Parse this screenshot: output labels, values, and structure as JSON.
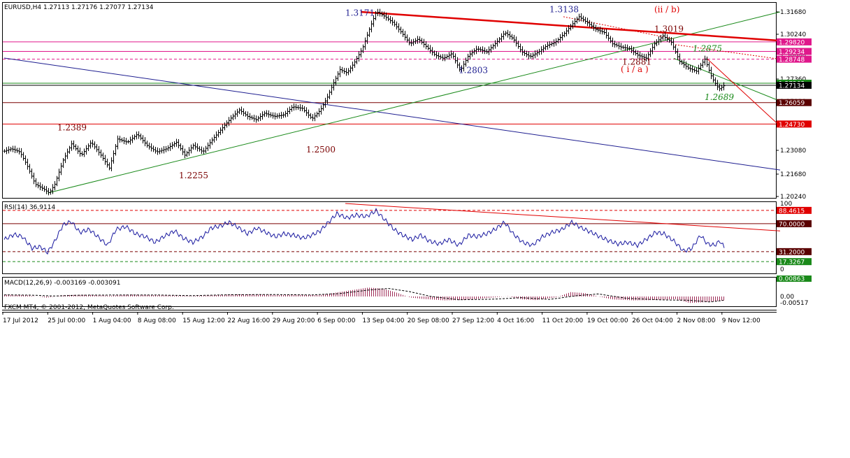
{
  "window": {
    "symbol_header": "EURUSD,H4  1.27113 1.27176 1.27077 1.27134",
    "copyright": "FXCM MT4, © 2001-2012, MetaQuotes Software Corp."
  },
  "colors": {
    "candle": "#000000",
    "red_trend": "#e00000",
    "green_trend": "#1a8a1a",
    "blue_trend": "#1e1e90",
    "magenta_level": "#e0188c",
    "dark_level": "#7a0000",
    "rsi_line": "#1a1aa0",
    "macd_hist": "#a0305a"
  },
  "chart_data": [
    {
      "type": "candlestick",
      "panel": "price",
      "ylim": [
        1.2024,
        1.3168
      ],
      "y_ticks": [
        "1.31680",
        "1.30240",
        "1.28800",
        "1.27360",
        "1.25920",
        "1.24480",
        "1.23080",
        "1.21680",
        "1.20240"
      ],
      "x_ticks": [
        "17 Jul 2012",
        "25 Jul 00:00",
        "1 Aug 04:00",
        "8 Aug 08:00",
        "15 Aug 12:00",
        "22 Aug 16:00",
        "29 Aug 20:00",
        "6 Sep 00:00",
        "13 Sep 04:00",
        "20 Sep 08:00",
        "27 Sep 12:00",
        "4 Oct 16:00",
        "11 Oct 20:00",
        "19 Oct 00:00",
        "26 Oct 04:00",
        "2 Nov 08:00",
        "9 Nov 12:00"
      ],
      "close_path": [
        [
          0,
          1.2305
        ],
        [
          10,
          1.232
        ],
        [
          22,
          1.23
        ],
        [
          32,
          1.222
        ],
        [
          44,
          1.21
        ],
        [
          56,
          1.207
        ],
        [
          64,
          1.2045
        ],
        [
          72,
          1.21
        ],
        [
          84,
          1.225
        ],
        [
          96,
          1.235
        ],
        [
          110,
          1.228
        ],
        [
          124,
          1.236
        ],
        [
          138,
          1.228
        ],
        [
          150,
          1.22
        ],
        [
          162,
          1.238
        ],
        [
          176,
          1.236
        ],
        [
          190,
          1.241
        ],
        [
          204,
          1.234
        ],
        [
          218,
          1.23
        ],
        [
          232,
          1.232
        ],
        [
          246,
          1.236
        ],
        [
          258,
          1.228
        ],
        [
          270,
          1.234
        ],
        [
          284,
          1.23
        ],
        [
          298,
          1.238
        ],
        [
          312,
          1.245
        ],
        [
          324,
          1.251
        ],
        [
          336,
          1.256
        ],
        [
          348,
          1.252
        ],
        [
          360,
          1.25
        ],
        [
          372,
          1.254
        ],
        [
          386,
          1.252
        ],
        [
          400,
          1.253
        ],
        [
          412,
          1.258
        ],
        [
          426,
          1.257
        ],
        [
          440,
          1.2505
        ],
        [
          452,
          1.256
        ],
        [
          462,
          1.264
        ],
        [
          470,
          1.272
        ],
        [
          480,
          1.281
        ],
        [
          490,
          1.279
        ],
        [
          500,
          1.285
        ],
        [
          512,
          1.294
        ],
        [
          522,
          1.306
        ],
        [
          532,
          1.3171
        ],
        [
          544,
          1.314
        ],
        [
          556,
          1.31
        ],
        [
          568,
          1.304
        ],
        [
          580,
          1.297
        ],
        [
          592,
          1.3
        ],
        [
          604,
          1.295
        ],
        [
          616,
          1.29
        ],
        [
          628,
          1.288
        ],
        [
          640,
          1.291
        ],
        [
          652,
          1.2803
        ],
        [
          664,
          1.29
        ],
        [
          676,
          1.294
        ],
        [
          690,
          1.292
        ],
        [
          704,
          1.298
        ],
        [
          716,
          1.304
        ],
        [
          728,
          1.3
        ],
        [
          740,
          1.292
        ],
        [
          752,
          1.289
        ],
        [
          764,
          1.292
        ],
        [
          776,
          1.296
        ],
        [
          788,
          1.298
        ],
        [
          800,
          1.303
        ],
        [
          812,
          1.309
        ],
        [
          822,
          1.3138
        ],
        [
          834,
          1.31
        ],
        [
          846,
          1.306
        ],
        [
          858,
          1.304
        ],
        [
          870,
          1.297
        ],
        [
          882,
          1.295
        ],
        [
          894,
          1.294
        ],
        [
          906,
          1.29
        ],
        [
          918,
          1.2881
        ],
        [
          930,
          1.297
        ],
        [
          942,
          1.3019
        ],
        [
          954,
          1.298
        ],
        [
          966,
          1.286
        ],
        [
          978,
          1.282
        ],
        [
          990,
          1.28
        ],
        [
          1002,
          1.2875
        ],
        [
          1012,
          1.276
        ],
        [
          1022,
          1.2689
        ],
        [
          1030,
          1.2713
        ]
      ],
      "horizontal_levels": [
        {
          "price": 1.2982,
          "label": "1.29820",
          "style": "solid",
          "color": "magenta"
        },
        {
          "price": 1.2923,
          "label": "1.29234",
          "style": "solid",
          "color": "magenta"
        },
        {
          "price": 1.2875,
          "label": "1.28748",
          "style": "dashed",
          "color": "magenta"
        },
        {
          "price": 1.2726,
          "label": "1.27263",
          "style": "solid",
          "color": "green"
        },
        {
          "price": 1.2713,
          "label": "1.27134",
          "style": "solid",
          "color": "black"
        },
        {
          "price": 1.2606,
          "label": "1.26059",
          "style": "solid",
          "color": "dark"
        },
        {
          "price": 1.2473,
          "label": "1.24730",
          "style": "solid",
          "color": "red"
        }
      ],
      "trendlines": [
        {
          "from": [
            0,
            1.2882
          ],
          "to": [
            1110,
            1.2188
          ],
          "color": "blue"
        },
        {
          "from": [
            62,
            1.2045
          ],
          "to": [
            1110,
            1.3168
          ],
          "color": "green"
        },
        {
          "from": [
            510,
            1.3168
          ],
          "to": [
            1110,
            1.299
          ],
          "color": "red",
          "width": "thick"
        },
        {
          "from": [
            958,
            1.288
          ],
          "to": [
            1110,
            1.2615
          ],
          "color": "green"
        },
        {
          "from": [
            960,
            1.2965
          ],
          "to": [
            1110,
            1.2875
          ],
          "color": "red",
          "style": "dotted"
        },
        {
          "from": [
            800,
            1.3138
          ],
          "to": [
            958,
            1.3
          ],
          "color": "red",
          "style": "dotted"
        },
        {
          "from": [
            1005,
            1.288
          ],
          "to": [
            1110,
            1.246
          ],
          "color": "red"
        }
      ],
      "annotations": [
        {
          "text": "1.3171",
          "at": [
            488,
            1.3145
          ],
          "color": "blue"
        },
        {
          "text": "1.3138",
          "at": [
            780,
            1.3165
          ],
          "color": "blue"
        },
        {
          "text": "1.2803",
          "at": [
            650,
            1.2788
          ],
          "color": "blue"
        },
        {
          "text": "(ii / b)",
          "at": [
            930,
            1.3165
          ],
          "color": "red"
        },
        {
          "text": "1.3019",
          "at": [
            930,
            1.3045
          ],
          "color": "dark"
        },
        {
          "text": "1.2875",
          "at": [
            985,
            1.2923
          ],
          "color": "green_italic"
        },
        {
          "text": "1.2881",
          "at": [
            884,
            1.284
          ],
          "color": "dark"
        },
        {
          "text": "( i / a )",
          "at": [
            882,
            1.2796
          ],
          "color": "red"
        },
        {
          "text": "1.2689",
          "at": [
            1002,
            1.2622
          ],
          "color": "green_italic"
        },
        {
          "text": "1.2389",
          "at": [
            76,
            1.2433
          ],
          "color": "dark"
        },
        {
          "text": "1.2500",
          "at": [
            432,
            1.2298
          ],
          "color": "dark"
        },
        {
          "text": "1.2255",
          "at": [
            250,
            1.2136
          ],
          "color": "dark"
        }
      ]
    },
    {
      "type": "line",
      "panel": "indicator",
      "title": "RSI(14) 36.9114",
      "ylim": [
        0,
        100
      ],
      "y_ticks": [
        "100",
        "0"
      ],
      "levels": [
        {
          "value": 88.4615,
          "label": "88.4615",
          "style": "dashed",
          "color": "red"
        },
        {
          "value": 70,
          "label": "70.0000",
          "style": "solid",
          "color": "dark"
        },
        {
          "value": 31.2,
          "label": "31.2000",
          "style": "dashed",
          "color": "dark"
        },
        {
          "value": 17.3267,
          "label": "17.3267",
          "style": "dashed",
          "color": "green"
        }
      ],
      "values_path": [
        [
          0,
          48
        ],
        [
          14,
          55
        ],
        [
          26,
          52
        ],
        [
          40,
          36
        ],
        [
          52,
          38
        ],
        [
          62,
          30
        ],
        [
          72,
          45
        ],
        [
          84,
          68
        ],
        [
          96,
          73
        ],
        [
          108,
          58
        ],
        [
          122,
          62
        ],
        [
          136,
          50
        ],
        [
          148,
          40
        ],
        [
          160,
          62
        ],
        [
          174,
          66
        ],
        [
          188,
          56
        ],
        [
          202,
          52
        ],
        [
          216,
          44
        ],
        [
          228,
          52
        ],
        [
          244,
          60
        ],
        [
          256,
          50
        ],
        [
          270,
          44
        ],
        [
          284,
          52
        ],
        [
          296,
          64
        ],
        [
          310,
          67
        ],
        [
          322,
          72
        ],
        [
          336,
          64
        ],
        [
          348,
          56
        ],
        [
          362,
          64
        ],
        [
          374,
          58
        ],
        [
          388,
          52
        ],
        [
          400,
          56
        ],
        [
          414,
          54
        ],
        [
          428,
          50
        ],
        [
          440,
          54
        ],
        [
          452,
          60
        ],
        [
          464,
          72
        ],
        [
          476,
          84
        ],
        [
          490,
          78
        ],
        [
          504,
          82
        ],
        [
          518,
          80
        ],
        [
          532,
          88
        ],
        [
          544,
          76
        ],
        [
          558,
          62
        ],
        [
          570,
          54
        ],
        [
          584,
          48
        ],
        [
          596,
          54
        ],
        [
          608,
          46
        ],
        [
          622,
          42
        ],
        [
          636,
          48
        ],
        [
          650,
          40
        ],
        [
          664,
          54
        ],
        [
          676,
          52
        ],
        [
          690,
          56
        ],
        [
          702,
          62
        ],
        [
          716,
          72
        ],
        [
          728,
          56
        ],
        [
          742,
          44
        ],
        [
          756,
          40
        ],
        [
          770,
          52
        ],
        [
          784,
          58
        ],
        [
          798,
          62
        ],
        [
          812,
          72
        ],
        [
          826,
          64
        ],
        [
          840,
          58
        ],
        [
          852,
          52
        ],
        [
          866,
          46
        ],
        [
          878,
          42
        ],
        [
          892,
          44
        ],
        [
          906,
          40
        ],
        [
          918,
          48
        ],
        [
          932,
          58
        ],
        [
          944,
          56
        ],
        [
          958,
          46
        ],
        [
          972,
          32
        ],
        [
          984,
          36
        ],
        [
          996,
          54
        ],
        [
          1006,
          42
        ],
        [
          1016,
          40
        ],
        [
          1024,
          46
        ],
        [
          1030,
          37
        ]
      ],
      "trendline": {
        "from": [
          488,
          98
        ],
        "to": [
          1110,
          60
        ],
        "color": "red"
      }
    },
    {
      "type": "bar",
      "panel": "indicator",
      "title": "MACD(12,26,9) -0.003169 -0.003091",
      "y_ticks": [
        "0.00"
      ],
      "levels": [
        {
          "value": 0.00863,
          "label": "0.00863",
          "color": "green"
        },
        {
          "value": -0.00517,
          "label": "-0.00517",
          "color": "none"
        }
      ],
      "histogram_path": [
        [
          0,
          0.0015
        ],
        [
          30,
          0.0011
        ],
        [
          60,
          -0.0009
        ],
        [
          90,
          0.0012
        ],
        [
          120,
          0.0014
        ],
        [
          150,
          0.0006
        ],
        [
          180,
          0.0016
        ],
        [
          210,
          0.0011
        ],
        [
          240,
          0.0008
        ],
        [
          270,
          0.0004
        ],
        [
          300,
          0.0011
        ],
        [
          330,
          0.0018
        ],
        [
          360,
          0.0017
        ],
        [
          390,
          0.0012
        ],
        [
          420,
          0.0014
        ],
        [
          450,
          0.0011
        ],
        [
          470,
          0.0028
        ],
        [
          500,
          0.0055
        ],
        [
          520,
          0.0073
        ],
        [
          540,
          0.0066
        ],
        [
          560,
          0.0034
        ],
        [
          580,
          -0.0008
        ],
        [
          600,
          -0.0021
        ],
        [
          630,
          -0.0032
        ],
        [
          660,
          -0.0028
        ],
        [
          690,
          -0.0013
        ],
        [
          720,
          0.0002
        ],
        [
          740,
          -0.0023
        ],
        [
          760,
          -0.003
        ],
        [
          790,
          -0.0006
        ],
        [
          810,
          0.0036
        ],
        [
          830,
          0.0028
        ],
        [
          850,
          -0.0001
        ],
        [
          870,
          -0.0024
        ],
        [
          900,
          -0.0032
        ],
        [
          930,
          -0.0029
        ],
        [
          960,
          -0.0022
        ],
        [
          980,
          -0.0053
        ],
        [
          1000,
          -0.0048
        ],
        [
          1030,
          -0.0032
        ]
      ],
      "signal_path": [
        [
          0,
          0.0013
        ],
        [
          40,
          0.0011
        ],
        [
          70,
          0.0004
        ],
        [
          110,
          0.0011
        ],
        [
          160,
          0.0012
        ],
        [
          220,
          0.0012
        ],
        [
          270,
          0.0007
        ],
        [
          320,
          0.0014
        ],
        [
          380,
          0.0016
        ],
        [
          440,
          0.0013
        ],
        [
          480,
          0.0024
        ],
        [
          520,
          0.0052
        ],
        [
          550,
          0.0066
        ],
        [
          580,
          0.004
        ],
        [
          610,
          0.0001
        ],
        [
          650,
          -0.0027
        ],
        [
          700,
          -0.0022
        ],
        [
          740,
          -0.001
        ],
        [
          780,
          -0.0024
        ],
        [
          820,
          0.0007
        ],
        [
          850,
          0.0021
        ],
        [
          890,
          -0.0015
        ],
        [
          940,
          -0.0028
        ],
        [
          980,
          -0.0031
        ],
        [
          1010,
          -0.0045
        ],
        [
          1030,
          -0.0031
        ]
      ]
    }
  ]
}
